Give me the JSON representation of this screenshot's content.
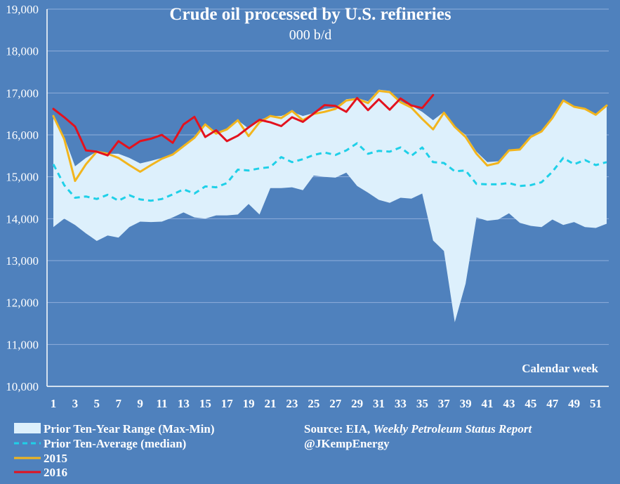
{
  "chart_data": {
    "type": "line",
    "title": "Crude oil processed by U.S. refineries",
    "subtitle": "000 b/d",
    "xlabel": "Calendar week",
    "ylabel": "",
    "ylim": [
      10000,
      19000
    ],
    "xlim": [
      1,
      52
    ],
    "yticks": [
      "10,000",
      "11,000",
      "12,000",
      "13,000",
      "14,000",
      "15,000",
      "16,000",
      "17,000",
      "18,000",
      "19,000"
    ],
    "xticks": [
      "1",
      "3",
      "5",
      "7",
      "9",
      "11",
      "13",
      "15",
      "17",
      "19",
      "21",
      "23",
      "25",
      "27",
      "29",
      "31",
      "33",
      "35",
      "37",
      "39",
      "41",
      "43",
      "45",
      "47",
      "49",
      "51"
    ],
    "grid": true,
    "legend_position": "bottom-left",
    "series": [
      {
        "name": "Prior Ten-Year Range (Max-Min)",
        "kind": "band",
        "color": "#ddf0fc",
        "max": [
          16450,
          15950,
          15250,
          15450,
          15600,
          15550,
          15550,
          15450,
          15320,
          15380,
          15450,
          15550,
          15750,
          15950,
          16250,
          16050,
          16150,
          16350,
          16150,
          16350,
          16450,
          16450,
          16550,
          16450,
          16520,
          16620,
          16650,
          16850,
          16880,
          16800,
          17080,
          17050,
          16780,
          16700,
          16550,
          16350,
          16550,
          16200,
          16000,
          15600,
          15350,
          15370,
          15650,
          15650,
          15950,
          16100,
          16400,
          16820,
          16680,
          16620,
          16500,
          16700
        ],
        "min": [
          13800,
          14000,
          13850,
          13650,
          13470,
          13600,
          13550,
          13800,
          13930,
          13920,
          13930,
          14030,
          14150,
          14030,
          14000,
          14080,
          14080,
          14100,
          14350,
          14100,
          14730,
          14730,
          14750,
          14680,
          15030,
          15000,
          14980,
          15100,
          14780,
          14620,
          14450,
          14380,
          14500,
          14480,
          14600,
          13480,
          13230,
          11530,
          12450,
          14030,
          13950,
          13980,
          14130,
          13900,
          13830,
          13800,
          13980,
          13850,
          13920,
          13800,
          13780,
          13880
        ]
      },
      {
        "name": "Prior Ten-Average (median)",
        "kind": "dashed",
        "color": "#1fd0e8",
        "values": [
          15300,
          14800,
          14500,
          14530,
          14470,
          14570,
          14430,
          14560,
          14460,
          14430,
          14470,
          14580,
          14700,
          14600,
          14770,
          14750,
          14850,
          15170,
          15150,
          15200,
          15230,
          15470,
          15350,
          15420,
          15520,
          15580,
          15520,
          15630,
          15800,
          15550,
          15620,
          15600,
          15700,
          15500,
          15700,
          15350,
          15330,
          15130,
          15150,
          14830,
          14820,
          14820,
          14850,
          14780,
          14800,
          14870,
          15120,
          15450,
          15300,
          15400,
          15280,
          15350
        ]
      },
      {
        "name": "2015",
        "kind": "line",
        "color": "#f2b51d",
        "values": [
          16450,
          15900,
          14900,
          15300,
          15600,
          15550,
          15450,
          15280,
          15120,
          15280,
          15430,
          15530,
          15730,
          15930,
          16250,
          16030,
          16130,
          16350,
          15970,
          16300,
          16450,
          16400,
          16570,
          16350,
          16500,
          16550,
          16620,
          16820,
          16860,
          16760,
          17050,
          17020,
          16780,
          16650,
          16380,
          16130,
          16530,
          16190,
          15950,
          15550,
          15270,
          15330,
          15630,
          15650,
          15950,
          16080,
          16400,
          16820,
          16670,
          16620,
          16480,
          16700
        ]
      },
      {
        "name": "2016",
        "kind": "line",
        "color": "#e3121e",
        "values": [
          16620,
          16420,
          16200,
          15630,
          15600,
          15510,
          15850,
          15680,
          15850,
          15910,
          16000,
          15810,
          16250,
          16430,
          15950,
          16110,
          15850,
          15980,
          16180,
          16360,
          16300,
          16210,
          16420,
          16310,
          16510,
          16710,
          16690,
          16550,
          16880,
          16590,
          16850,
          16600,
          16870,
          16700,
          16640,
          16950
        ]
      }
    ]
  },
  "legend": [
    {
      "label": "Prior Ten-Year Range (Max-Min)",
      "swatch": "band"
    },
    {
      "label": "Prior Ten-Average (median)",
      "swatch": "dashed"
    },
    {
      "label": "2015",
      "swatch": "gold"
    },
    {
      "label": "2016",
      "swatch": "red"
    }
  ],
  "source": {
    "prefix": "Source: EIA, ",
    "report": "Weekly Petroleum Status Report",
    "handle": "@JKempEnergy"
  },
  "colors": {
    "background": "#4f81bd",
    "grid": "#8faedb",
    "axis": "#ffffff",
    "text": "#ffffff"
  }
}
